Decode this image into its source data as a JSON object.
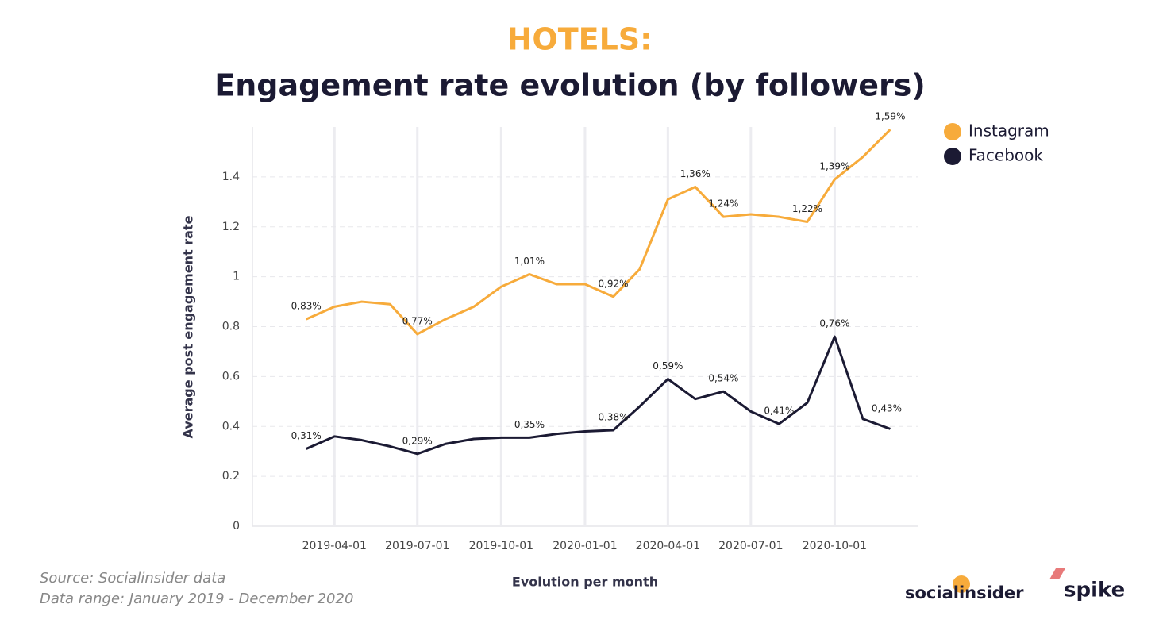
{
  "chart_data": {
    "type": "line",
    "title": "HOTELS:",
    "subtitle": "Engagement rate evolution (by followers)",
    "ylabel": "Average post engagement rate",
    "xlabel": "Evolution per month",
    "x": [
      "2019-03-01",
      "2019-04-01",
      "2019-05-01",
      "2019-06-01",
      "2019-07-01",
      "2019-08-01",
      "2019-09-01",
      "2019-10-01",
      "2019-11-01",
      "2019-12-01",
      "2020-01-01",
      "2020-02-01",
      "2020-03-01",
      "2020-04-01",
      "2020-05-01",
      "2020-06-01",
      "2020-07-01",
      "2020-08-01",
      "2020-09-01",
      "2020-10-01",
      "2020-11-01",
      "2020-12-01"
    ],
    "xlim": [
      "2019-01-01",
      "2021-01-01"
    ],
    "xticks": [
      "2019-04-01",
      "2019-07-01",
      "2019-10-01",
      "2020-01-01",
      "2020-04-01",
      "2020-07-01",
      "2020-10-01"
    ],
    "ylim": [
      0,
      1.6
    ],
    "yticks": [
      0,
      0.2,
      0.4,
      0.6,
      0.8,
      1,
      1.2,
      1.4
    ],
    "grid": true,
    "legend": "top-right",
    "series": [
      {
        "name": "Instagram",
        "color": "#f7ab3b",
        "values": [
          0.83,
          0.88,
          0.9,
          0.89,
          0.77,
          0.83,
          0.88,
          0.96,
          1.01,
          0.97,
          0.97,
          0.92,
          1.03,
          1.31,
          1.36,
          1.24,
          1.25,
          1.24,
          1.22,
          1.39,
          1.48,
          1.59
        ],
        "value_labels": [
          "0,83%",
          null,
          null,
          null,
          "0,77%",
          null,
          null,
          null,
          "1,01%",
          null,
          null,
          "0,92%",
          null,
          null,
          "1,36%",
          "1,24%",
          null,
          null,
          "1,22%",
          "1,39%",
          null,
          "1,59%"
        ]
      },
      {
        "name": "Facebook",
        "color": "#1b1a33",
        "values": [
          0.31,
          0.36,
          0.345,
          0.32,
          0.29,
          0.33,
          0.35,
          0.355,
          0.355,
          0.37,
          0.38,
          0.385,
          0.48,
          0.59,
          0.51,
          0.54,
          0.46,
          0.41,
          0.495,
          0.76,
          0.43,
          0.39
        ],
        "value_labels": [
          "0,31%",
          null,
          null,
          null,
          "0,29%",
          null,
          null,
          null,
          "0,35%",
          null,
          null,
          "0,38%",
          null,
          "0,59%",
          null,
          "0,54%",
          null,
          "0,41%",
          null,
          "0,76%",
          "0,43%",
          null
        ]
      }
    ]
  },
  "footer": {
    "source": "Source: Socialinsider data",
    "range": "Data range: January 2019 - December 2020",
    "logo1": "socialinsider",
    "logo2": "spike"
  }
}
